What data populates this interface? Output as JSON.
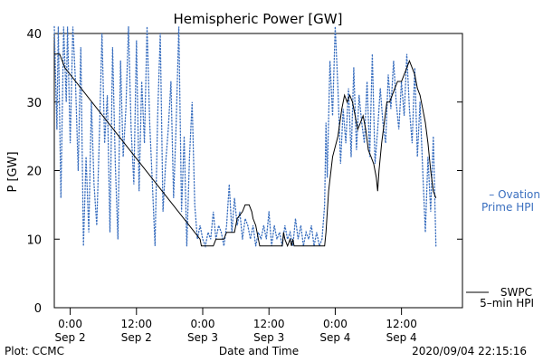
{
  "chart_data": {
    "type": "line",
    "title": "Hemispheric Power [GW]",
    "xlabel": "Date and Time",
    "ylabel": "P [GW]",
    "ylim": [
      0,
      40
    ],
    "xlim": [
      -0.12,
      2.96
    ],
    "y_ticks": [
      0,
      10,
      20,
      30,
      40
    ],
    "x_ticks": [
      {
        "t": 0.0,
        "time": "0:00",
        "date": "Sep 2"
      },
      {
        "t": 0.5,
        "time": "12:00",
        "date": "Sep 2"
      },
      {
        "t": 1.0,
        "time": "0:00",
        "date": "Sep 3"
      },
      {
        "t": 1.5,
        "time": "12:00",
        "date": "Sep 3"
      },
      {
        "t": 2.0,
        "time": "0:00",
        "date": "Sep 4"
      },
      {
        "t": 2.5,
        "time": "12:00",
        "date": "Sep 4"
      }
    ],
    "grid": false,
    "footer_left": "Plot: CCMC",
    "footer_right": "2020/09/04 22:15:16",
    "series": [
      {
        "name": "SWPC 5-min HPI",
        "label_lines": [
          "SWPC",
          "5–min HPI"
        ],
        "color": "#000000",
        "style": "solid",
        "points": [
          [
            -0.12,
            37
          ],
          [
            -0.08,
            37
          ],
          [
            -0.06,
            36
          ],
          [
            -0.04,
            35
          ],
          [
            0.98,
            10
          ],
          [
            0.99,
            9
          ],
          [
            1.08,
            9
          ],
          [
            1.1,
            10
          ],
          [
            1.16,
            10
          ],
          [
            1.18,
            11
          ],
          [
            1.24,
            11
          ],
          [
            1.26,
            13
          ],
          [
            1.3,
            14
          ],
          [
            1.32,
            15
          ],
          [
            1.35,
            15
          ],
          [
            1.37,
            14
          ],
          [
            1.38,
            13
          ],
          [
            1.4,
            12
          ],
          [
            1.42,
            10
          ],
          [
            1.43,
            9
          ],
          [
            1.6,
            9
          ],
          [
            1.61,
            11
          ],
          [
            1.62,
            10
          ],
          [
            1.64,
            9
          ],
          [
            1.66,
            10
          ],
          [
            1.67,
            9
          ],
          [
            1.68,
            10
          ],
          [
            1.69,
            9
          ],
          [
            1.92,
            9
          ],
          [
            1.93,
            11
          ],
          [
            1.95,
            17
          ],
          [
            1.98,
            22
          ],
          [
            2.02,
            25
          ],
          [
            2.05,
            29
          ],
          [
            2.07,
            31
          ],
          [
            2.09,
            30
          ],
          [
            2.11,
            31
          ],
          [
            2.13,
            30
          ],
          [
            2.15,
            28
          ],
          [
            2.17,
            26
          ],
          [
            2.19,
            27
          ],
          [
            2.21,
            28
          ],
          [
            2.23,
            26
          ],
          [
            2.25,
            23
          ],
          [
            2.27,
            22
          ],
          [
            2.29,
            21
          ],
          [
            2.31,
            19
          ],
          [
            2.32,
            17
          ],
          [
            2.33,
            20
          ],
          [
            2.35,
            24
          ],
          [
            2.37,
            27
          ],
          [
            2.39,
            30
          ],
          [
            2.41,
            30
          ],
          [
            2.43,
            31
          ],
          [
            2.45,
            32
          ],
          [
            2.47,
            33
          ],
          [
            2.5,
            33
          ],
          [
            2.52,
            34
          ],
          [
            2.54,
            35
          ],
          [
            2.56,
            36
          ],
          [
            2.58,
            35
          ],
          [
            2.6,
            34
          ],
          [
            2.62,
            32
          ],
          [
            2.64,
            31
          ],
          [
            2.66,
            29
          ],
          [
            2.68,
            27
          ],
          [
            2.7,
            24
          ],
          [
            2.72,
            20
          ],
          [
            2.74,
            17
          ],
          [
            2.76,
            16
          ]
        ]
      },
      {
        "name": "Ovation Prime HPI",
        "label_lines": [
          "– Ovation",
          "Prime HPI"
        ],
        "color": "#3a6fbf",
        "style": "dotted",
        "points": [
          [
            -0.12,
            41
          ],
          [
            -0.1,
            26
          ],
          [
            -0.09,
            41
          ],
          [
            -0.07,
            16
          ],
          [
            -0.05,
            41
          ],
          [
            -0.03,
            30
          ],
          [
            -0.02,
            41
          ],
          [
            0.0,
            24
          ],
          [
            0.02,
            41
          ],
          [
            0.04,
            33
          ],
          [
            0.06,
            20
          ],
          [
            0.08,
            38
          ],
          [
            0.1,
            9
          ],
          [
            0.12,
            22
          ],
          [
            0.14,
            11
          ],
          [
            0.16,
            30
          ],
          [
            0.18,
            18
          ],
          [
            0.2,
            12
          ],
          [
            0.22,
            25
          ],
          [
            0.24,
            40
          ],
          [
            0.26,
            24
          ],
          [
            0.28,
            31
          ],
          [
            0.3,
            11
          ],
          [
            0.32,
            38
          ],
          [
            0.34,
            21
          ],
          [
            0.36,
            10
          ],
          [
            0.38,
            36
          ],
          [
            0.4,
            22
          ],
          [
            0.42,
            29
          ],
          [
            0.44,
            41
          ],
          [
            0.46,
            26
          ],
          [
            0.48,
            18
          ],
          [
            0.5,
            39
          ],
          [
            0.52,
            17
          ],
          [
            0.54,
            33
          ],
          [
            0.56,
            24
          ],
          [
            0.58,
            41
          ],
          [
            0.6,
            27
          ],
          [
            0.62,
            18
          ],
          [
            0.64,
            9
          ],
          [
            0.66,
            28
          ],
          [
            0.68,
            40
          ],
          [
            0.7,
            14
          ],
          [
            0.72,
            21
          ],
          [
            0.74,
            26
          ],
          [
            0.76,
            33
          ],
          [
            0.78,
            16
          ],
          [
            0.8,
            27
          ],
          [
            0.82,
            41
          ],
          [
            0.84,
            14
          ],
          [
            0.86,
            25
          ],
          [
            0.88,
            9
          ],
          [
            0.9,
            22
          ],
          [
            0.92,
            30
          ],
          [
            0.94,
            15
          ],
          [
            0.96,
            10
          ],
          [
            0.98,
            12
          ],
          [
            1.0,
            10
          ],
          [
            1.02,
            9
          ],
          [
            1.04,
            11
          ],
          [
            1.06,
            10
          ],
          [
            1.08,
            14
          ],
          [
            1.1,
            10
          ],
          [
            1.12,
            12
          ],
          [
            1.14,
            11
          ],
          [
            1.16,
            9
          ],
          [
            1.18,
            12
          ],
          [
            1.2,
            18
          ],
          [
            1.22,
            11
          ],
          [
            1.24,
            16
          ],
          [
            1.26,
            12
          ],
          [
            1.28,
            14
          ],
          [
            1.3,
            10
          ],
          [
            1.32,
            13
          ],
          [
            1.34,
            12
          ],
          [
            1.36,
            10
          ],
          [
            1.38,
            12
          ],
          [
            1.4,
            9
          ],
          [
            1.42,
            11
          ],
          [
            1.44,
            10
          ],
          [
            1.46,
            12
          ],
          [
            1.48,
            10
          ],
          [
            1.5,
            14
          ],
          [
            1.52,
            9
          ],
          [
            1.54,
            12
          ],
          [
            1.56,
            10
          ],
          [
            1.58,
            11
          ],
          [
            1.6,
            9
          ],
          [
            1.62,
            12
          ],
          [
            1.64,
            10
          ],
          [
            1.66,
            11
          ],
          [
            1.68,
            9
          ],
          [
            1.7,
            13
          ],
          [
            1.72,
            10
          ],
          [
            1.74,
            12
          ],
          [
            1.76,
            9
          ],
          [
            1.78,
            11
          ],
          [
            1.8,
            10
          ],
          [
            1.82,
            12
          ],
          [
            1.84,
            9
          ],
          [
            1.86,
            11
          ],
          [
            1.88,
            9
          ],
          [
            1.9,
            10
          ],
          [
            1.92,
            15
          ],
          [
            1.93,
            27
          ],
          [
            1.94,
            19
          ],
          [
            1.96,
            36
          ],
          [
            1.98,
            28
          ],
          [
            2.0,
            41
          ],
          [
            2.02,
            32
          ],
          [
            2.04,
            21
          ],
          [
            2.06,
            29
          ],
          [
            2.08,
            24
          ],
          [
            2.1,
            32
          ],
          [
            2.12,
            22
          ],
          [
            2.14,
            35
          ],
          [
            2.16,
            23
          ],
          [
            2.18,
            31
          ],
          [
            2.2,
            27
          ],
          [
            2.22,
            24
          ],
          [
            2.24,
            33
          ],
          [
            2.26,
            22
          ],
          [
            2.28,
            37
          ],
          [
            2.3,
            21
          ],
          [
            2.32,
            26
          ],
          [
            2.34,
            32
          ],
          [
            2.36,
            27
          ],
          [
            2.38,
            24
          ],
          [
            2.4,
            34
          ],
          [
            2.42,
            29
          ],
          [
            2.44,
            36
          ],
          [
            2.46,
            30
          ],
          [
            2.48,
            26
          ],
          [
            2.5,
            33
          ],
          [
            2.52,
            28
          ],
          [
            2.54,
            37
          ],
          [
            2.56,
            29
          ],
          [
            2.58,
            24
          ],
          [
            2.6,
            35
          ],
          [
            2.62,
            22
          ],
          [
            2.64,
            30
          ],
          [
            2.66,
            20
          ],
          [
            2.68,
            11
          ],
          [
            2.7,
            22
          ],
          [
            2.72,
            14
          ],
          [
            2.74,
            25
          ],
          [
            2.76,
            9
          ]
        ]
      }
    ]
  }
}
